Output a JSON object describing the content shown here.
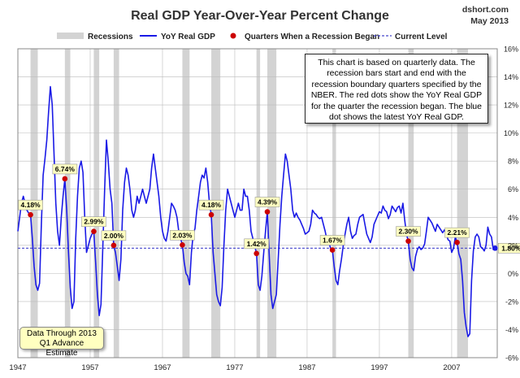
{
  "title": "Real GDP Year-Over-Year Percent Change",
  "source": "dshort.com",
  "date": "May 2013",
  "legend": {
    "recessions": "Recessions",
    "line": "YoY Real GDP",
    "dots": "Quarters When a Recession Began",
    "current": "Current Level"
  },
  "note": "This chart is based on quarterly data. The recession bars start and end with the recession boundary quarters specified by the NBER. The red dots show the YoY Real GDP for the quarter the recession began. The blue dot shows the latest YoY Real GDP.",
  "data_through_line1": "Data Through 2013",
  "data_through_line2": "Q1 Advance Estimate",
  "colors": {
    "line": "#1a1ae6",
    "dot": "#cc0000",
    "recession": "#d3d3d3",
    "current": "#4444cc",
    "label_fill": "#ffffc0"
  },
  "chart_data": {
    "type": "line",
    "title": "Real GDP Year-Over-Year Percent Change",
    "x_ticks": [
      "1947",
      "1957",
      "1967",
      "1977",
      "1987",
      "1997",
      "2007"
    ],
    "y_ticks": [
      "16%",
      "14%",
      "12%",
      "10%",
      "8%",
      "6%",
      "4%",
      "2%",
      "0%",
      "-2%",
      "-4%",
      "-6%"
    ],
    "ylim": [
      -6,
      16
    ],
    "xlim": [
      1947.0,
      2013.3
    ],
    "grid": true,
    "legend_position": "top",
    "current_level": 1.8,
    "recessions": [
      [
        1948.75,
        1949.75
      ],
      [
        1953.5,
        1954.25
      ],
      [
        1957.5,
        1958.25
      ],
      [
        1960.25,
        1961.0
      ],
      [
        1969.75,
        1970.75
      ],
      [
        1973.75,
        1975.0
      ],
      [
        1980.0,
        1980.5
      ],
      [
        1981.5,
        1982.75
      ],
      [
        1990.5,
        1991.0
      ],
      [
        2001.0,
        2001.75
      ],
      [
        2007.75,
        2009.25
      ]
    ],
    "recession_start_values": [
      {
        "x": 1948.75,
        "value": 4.18,
        "label": "4.18%"
      },
      {
        "x": 1953.5,
        "value": 6.74,
        "label": "6.74%"
      },
      {
        "x": 1957.5,
        "value": 2.99,
        "label": "2.99%"
      },
      {
        "x": 1960.25,
        "value": 2.0,
        "label": "2.00%"
      },
      {
        "x": 1969.75,
        "value": 2.03,
        "label": "2.03%"
      },
      {
        "x": 1973.75,
        "value": 4.18,
        "label": "4.18%"
      },
      {
        "x": 1980.0,
        "value": 1.42,
        "label": "1.42%"
      },
      {
        "x": 1981.5,
        "value": 4.39,
        "label": "4.39%"
      },
      {
        "x": 1990.5,
        "value": 1.67,
        "label": "1.67%"
      },
      {
        "x": 2001.0,
        "value": 2.3,
        "label": "2.30%"
      },
      {
        "x": 2007.75,
        "value": 2.21,
        "label": "2.21%"
      }
    ],
    "latest": {
      "x": 2013.0,
      "value": 1.8,
      "label": "1.80%"
    },
    "series": [
      {
        "name": "YoY Real GDP",
        "points": [
          [
            1947.0,
            3.0
          ],
          [
            1947.25,
            4.0
          ],
          [
            1947.5,
            5.0
          ],
          [
            1947.75,
            5.5
          ],
          [
            1948.0,
            5.0
          ],
          [
            1948.25,
            4.5
          ],
          [
            1948.5,
            4.3
          ],
          [
            1948.75,
            4.18
          ],
          [
            1949.0,
            2.5
          ],
          [
            1949.25,
            0.5
          ],
          [
            1949.5,
            -0.8
          ],
          [
            1949.75,
            -1.2
          ],
          [
            1950.0,
            -0.7
          ],
          [
            1950.25,
            3.5
          ],
          [
            1950.5,
            7.0
          ],
          [
            1950.75,
            8.2
          ],
          [
            1951.0,
            9.5
          ],
          [
            1951.25,
            11.5
          ],
          [
            1951.5,
            13.3
          ],
          [
            1951.75,
            12.0
          ],
          [
            1952.0,
            8.5
          ],
          [
            1952.25,
            5.0
          ],
          [
            1952.5,
            3.0
          ],
          [
            1952.75,
            2.0
          ],
          [
            1953.0,
            4.0
          ],
          [
            1953.25,
            5.5
          ],
          [
            1953.5,
            6.74
          ],
          [
            1953.75,
            4.5
          ],
          [
            1954.0,
            1.5
          ],
          [
            1954.25,
            -1.0
          ],
          [
            1954.5,
            -2.5
          ],
          [
            1954.75,
            -2.0
          ],
          [
            1955.0,
            2.5
          ],
          [
            1955.25,
            5.5
          ],
          [
            1955.5,
            7.5
          ],
          [
            1955.75,
            8.0
          ],
          [
            1956.0,
            7.2
          ],
          [
            1956.25,
            4.0
          ],
          [
            1956.5,
            1.5
          ],
          [
            1956.75,
            2.0
          ],
          [
            1957.0,
            2.5
          ],
          [
            1957.25,
            2.8
          ],
          [
            1957.5,
            2.99
          ],
          [
            1957.75,
            0.8
          ],
          [
            1958.0,
            -1.5
          ],
          [
            1958.25,
            -3.0
          ],
          [
            1958.5,
            -2.2
          ],
          [
            1958.75,
            2.0
          ],
          [
            1959.0,
            6.0
          ],
          [
            1959.25,
            9.5
          ],
          [
            1959.5,
            8.0
          ],
          [
            1959.75,
            6.0
          ],
          [
            1960.0,
            5.0
          ],
          [
            1960.25,
            2.0
          ],
          [
            1960.5,
            1.5
          ],
          [
            1960.75,
            0.5
          ],
          [
            1961.0,
            -0.5
          ],
          [
            1961.25,
            1.0
          ],
          [
            1961.5,
            4.5
          ],
          [
            1961.75,
            6.5
          ],
          [
            1962.0,
            7.5
          ],
          [
            1962.25,
            7.0
          ],
          [
            1962.5,
            6.0
          ],
          [
            1962.75,
            4.5
          ],
          [
            1963.0,
            4.0
          ],
          [
            1963.25,
            4.5
          ],
          [
            1963.5,
            5.5
          ],
          [
            1963.75,
            5.0
          ],
          [
            1964.0,
            5.5
          ],
          [
            1964.25,
            6.0
          ],
          [
            1964.5,
            5.5
          ],
          [
            1964.75,
            5.0
          ],
          [
            1965.0,
            5.5
          ],
          [
            1965.25,
            6.0
          ],
          [
            1965.5,
            7.5
          ],
          [
            1965.75,
            8.5
          ],
          [
            1966.0,
            7.5
          ],
          [
            1966.25,
            6.5
          ],
          [
            1966.5,
            5.5
          ],
          [
            1966.75,
            4.0
          ],
          [
            1967.0,
            3.0
          ],
          [
            1967.25,
            2.5
          ],
          [
            1967.5,
            2.3
          ],
          [
            1967.75,
            3.0
          ],
          [
            1968.0,
            4.0
          ],
          [
            1968.25,
            5.0
          ],
          [
            1968.5,
            4.8
          ],
          [
            1968.75,
            4.5
          ],
          [
            1969.0,
            4.0
          ],
          [
            1969.25,
            3.0
          ],
          [
            1969.5,
            2.5
          ],
          [
            1969.75,
            2.03
          ],
          [
            1970.0,
            0.8
          ],
          [
            1970.25,
            0.0
          ],
          [
            1970.5,
            -0.2
          ],
          [
            1970.75,
            -0.8
          ],
          [
            1971.0,
            1.5
          ],
          [
            1971.25,
            2.8
          ],
          [
            1971.5,
            3.2
          ],
          [
            1971.75,
            4.5
          ],
          [
            1972.0,
            5.5
          ],
          [
            1972.25,
            6.5
          ],
          [
            1972.5,
            7.0
          ],
          [
            1972.75,
            6.8
          ],
          [
            1973.0,
            7.5
          ],
          [
            1973.25,
            6.5
          ],
          [
            1973.5,
            5.0
          ],
          [
            1973.75,
            4.18
          ],
          [
            1974.0,
            1.5
          ],
          [
            1974.25,
            0.0
          ],
          [
            1974.5,
            -1.5
          ],
          [
            1974.75,
            -2.0
          ],
          [
            1975.0,
            -2.3
          ],
          [
            1975.25,
            -1.0
          ],
          [
            1975.5,
            2.0
          ],
          [
            1975.75,
            4.5
          ],
          [
            1976.0,
            6.0
          ],
          [
            1976.25,
            5.5
          ],
          [
            1976.5,
            5.0
          ],
          [
            1976.75,
            4.5
          ],
          [
            1977.0,
            4.0
          ],
          [
            1977.25,
            4.5
          ],
          [
            1977.5,
            5.0
          ],
          [
            1977.75,
            4.5
          ],
          [
            1978.0,
            4.5
          ],
          [
            1978.25,
            6.0
          ],
          [
            1978.5,
            5.5
          ],
          [
            1978.75,
            5.5
          ],
          [
            1979.0,
            4.5
          ],
          [
            1979.25,
            3.0
          ],
          [
            1979.5,
            2.5
          ],
          [
            1979.75,
            2.0
          ],
          [
            1980.0,
            1.42
          ],
          [
            1980.25,
            -0.8
          ],
          [
            1980.5,
            -1.2
          ],
          [
            1980.75,
            -0.2
          ],
          [
            1981.0,
            1.5
          ],
          [
            1981.25,
            3.0
          ],
          [
            1981.5,
            4.39
          ],
          [
            1981.75,
            1.5
          ],
          [
            1982.0,
            -1.5
          ],
          [
            1982.25,
            -2.5
          ],
          [
            1982.5,
            -2.0
          ],
          [
            1982.75,
            -1.5
          ],
          [
            1983.0,
            1.0
          ],
          [
            1983.25,
            3.5
          ],
          [
            1983.5,
            5.5
          ],
          [
            1983.75,
            7.0
          ],
          [
            1984.0,
            8.5
          ],
          [
            1984.25,
            8.0
          ],
          [
            1984.5,
            7.0
          ],
          [
            1984.75,
            6.0
          ],
          [
            1985.0,
            4.5
          ],
          [
            1985.25,
            4.0
          ],
          [
            1985.5,
            4.3
          ],
          [
            1985.75,
            4.0
          ],
          [
            1986.0,
            3.8
          ],
          [
            1986.25,
            3.5
          ],
          [
            1986.5,
            3.2
          ],
          [
            1986.75,
            2.8
          ],
          [
            1987.0,
            2.9
          ],
          [
            1987.25,
            3.0
          ],
          [
            1987.5,
            3.5
          ],
          [
            1987.75,
            4.5
          ],
          [
            1988.0,
            4.3
          ],
          [
            1988.25,
            4.2
          ],
          [
            1988.5,
            4.0
          ],
          [
            1988.75,
            3.9
          ],
          [
            1989.0,
            4.0
          ],
          [
            1989.25,
            3.5
          ],
          [
            1989.5,
            3.0
          ],
          [
            1989.75,
            2.4
          ],
          [
            1990.0,
            2.2
          ],
          [
            1990.25,
            1.8
          ],
          [
            1990.5,
            1.67
          ],
          [
            1990.75,
            0.5
          ],
          [
            1991.0,
            -0.5
          ],
          [
            1991.25,
            -0.8
          ],
          [
            1991.5,
            0.2
          ],
          [
            1991.75,
            1.0
          ],
          [
            1992.0,
            2.0
          ],
          [
            1992.25,
            2.8
          ],
          [
            1992.5,
            3.5
          ],
          [
            1992.75,
            4.0
          ],
          [
            1993.0,
            3.0
          ],
          [
            1993.25,
            2.5
          ],
          [
            1993.5,
            2.7
          ],
          [
            1993.75,
            2.8
          ],
          [
            1994.0,
            3.5
          ],
          [
            1994.25,
            4.0
          ],
          [
            1994.5,
            4.1
          ],
          [
            1994.75,
            4.2
          ],
          [
            1995.0,
            3.5
          ],
          [
            1995.25,
            2.8
          ],
          [
            1995.5,
            2.5
          ],
          [
            1995.75,
            2.2
          ],
          [
            1996.0,
            2.6
          ],
          [
            1996.25,
            3.5
          ],
          [
            1996.5,
            3.8
          ],
          [
            1996.75,
            4.1
          ],
          [
            1997.0,
            4.4
          ],
          [
            1997.25,
            4.3
          ],
          [
            1997.5,
            4.8
          ],
          [
            1997.75,
            4.5
          ],
          [
            1998.0,
            4.4
          ],
          [
            1998.25,
            3.9
          ],
          [
            1998.5,
            4.2
          ],
          [
            1998.75,
            4.8
          ],
          [
            1999.0,
            4.6
          ],
          [
            1999.25,
            4.4
          ],
          [
            1999.5,
            4.7
          ],
          [
            1999.75,
            4.8
          ],
          [
            2000.0,
            4.3
          ],
          [
            2000.25,
            5.0
          ],
          [
            2000.5,
            3.8
          ],
          [
            2000.75,
            2.8
          ],
          [
            2001.0,
            2.3
          ],
          [
            2001.25,
            1.0
          ],
          [
            2001.5,
            0.4
          ],
          [
            2001.75,
            0.2
          ],
          [
            2002.0,
            1.2
          ],
          [
            2002.25,
            1.7
          ],
          [
            2002.5,
            1.9
          ],
          [
            2002.75,
            1.7
          ],
          [
            2003.0,
            1.8
          ],
          [
            2003.25,
            2.1
          ],
          [
            2003.5,
            3.0
          ],
          [
            2003.75,
            4.0
          ],
          [
            2004.0,
            3.8
          ],
          [
            2004.25,
            3.6
          ],
          [
            2004.5,
            3.3
          ],
          [
            2004.75,
            3.0
          ],
          [
            2005.0,
            3.5
          ],
          [
            2005.25,
            3.3
          ],
          [
            2005.5,
            3.1
          ],
          [
            2005.75,
            2.9
          ],
          [
            2006.0,
            3.1
          ],
          [
            2006.25,
            2.8
          ],
          [
            2006.5,
            2.4
          ],
          [
            2006.75,
            2.3
          ],
          [
            2007.0,
            1.5
          ],
          [
            2007.25,
            1.8
          ],
          [
            2007.5,
            2.6
          ],
          [
            2007.75,
            2.21
          ],
          [
            2008.0,
            1.4
          ],
          [
            2008.25,
            1.0
          ],
          [
            2008.5,
            -0.5
          ],
          [
            2008.75,
            -2.8
          ],
          [
            2009.0,
            -3.8
          ],
          [
            2009.25,
            -4.5
          ],
          [
            2009.5,
            -4.3
          ],
          [
            2009.75,
            -0.5
          ],
          [
            2010.0,
            1.6
          ],
          [
            2010.25,
            2.6
          ],
          [
            2010.5,
            2.8
          ],
          [
            2010.75,
            2.6
          ],
          [
            2011.0,
            1.9
          ],
          [
            2011.25,
            1.8
          ],
          [
            2011.5,
            1.6
          ],
          [
            2011.75,
            2.0
          ],
          [
            2012.0,
            3.3
          ],
          [
            2012.25,
            2.8
          ],
          [
            2012.5,
            2.6
          ],
          [
            2012.75,
            1.7
          ],
          [
            2013.0,
            1.8
          ]
        ]
      }
    ]
  }
}
